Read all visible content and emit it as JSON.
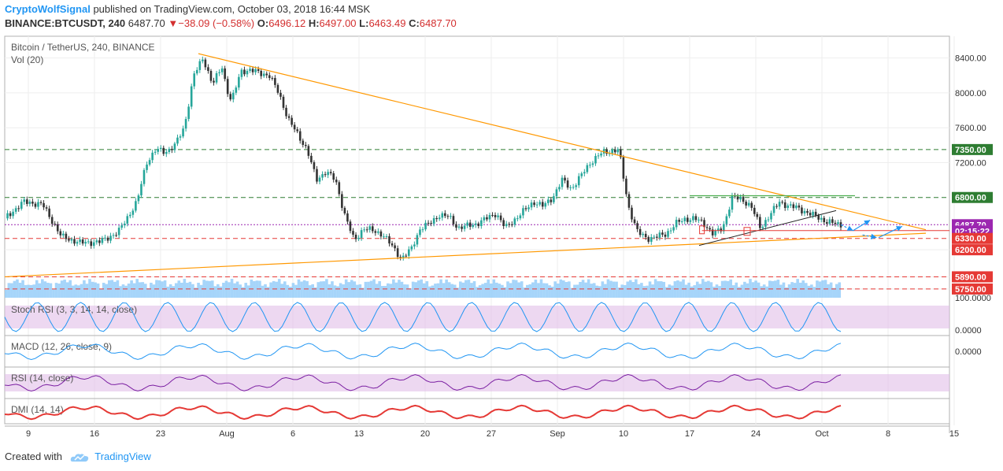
{
  "header": {
    "author": "CryptoWolfSignal",
    "published_text": "published on TradingView.com, October 03, 2018 16:44 MSK",
    "symbol": "BINANCE:BTCUSDT, 240",
    "last": "6487.70",
    "change_arrow": "▼",
    "change": "−38.09 (−0.58%)",
    "o_label": "O:",
    "o_value": "6496.12",
    "h_label": "H:",
    "h_value": "6497.00",
    "l_label": "L:",
    "l_value": "6463.49",
    "c_label": "C:",
    "c_value": "6487.70"
  },
  "footer": {
    "created_with": "Created with",
    "brand": "TradingView",
    "logo_icon": "tradingview-cloud-icon"
  },
  "colors": {
    "up": "#26a69a",
    "down": "#333333",
    "trend_orange": "#ff9800",
    "dash_green": "#2e7d32",
    "dash_red": "#e53935",
    "current_purple": "#9c27b0",
    "volume_blue": "#90caf9",
    "rsi_band": "#e1bee7",
    "accent_blue": "#2196f3"
  },
  "chart_data": {
    "type": "candlestick",
    "title": "Bitcoin / TetherUS, 240, BINANCE",
    "volume_label": "Vol (20)",
    "ylim": [
      5650,
      8650
    ],
    "yticks": [
      "8400.00",
      "8000.00",
      "7600.00",
      "7200.00",
      "6200.00",
      "5890.00",
      "5750.00"
    ],
    "ytick_values": [
      8400,
      8000,
      7600,
      7200,
      6200,
      5890,
      5750
    ],
    "xticks": [
      "9",
      "16",
      "23",
      "Aug",
      "6",
      "13",
      "20",
      "27",
      "Sep",
      "10",
      "17",
      "24",
      "Oct",
      "8",
      "15"
    ],
    "grid": true,
    "levels": [
      {
        "label": "7350.00",
        "value": 7350,
        "kind": "support-green"
      },
      {
        "label": "6800.00",
        "value": 6800,
        "kind": "support-green"
      },
      {
        "label": "6487.70",
        "value": 6487.7,
        "kind": "current"
      },
      {
        "label": "02:15:22",
        "value": 6415,
        "kind": "countdown"
      },
      {
        "label": "6330.00",
        "value": 6330,
        "kind": "support-red"
      },
      {
        "label": "6200.00",
        "value": 6200,
        "kind": "plain"
      },
      {
        "label": "5890.00",
        "value": 5890,
        "kind": "support-red"
      },
      {
        "label": "5750.00",
        "value": 5750,
        "kind": "support-red"
      }
    ],
    "path_x": [
      0,
      2,
      4,
      6,
      8,
      10,
      12,
      14,
      15,
      16,
      17,
      18,
      19,
      20,
      21,
      22,
      23,
      23.5,
      24,
      25,
      26,
      28,
      29,
      30,
      32,
      33,
      34,
      35,
      36,
      37,
      38,
      40,
      42,
      43,
      44,
      45,
      46,
      47,
      48,
      50,
      52,
      53,
      54,
      56,
      57,
      58,
      59,
      60,
      61,
      62,
      63,
      64,
      65,
      66,
      67,
      68,
      69,
      70,
      71,
      72,
      73,
      74,
      75,
      76,
      77,
      78,
      79,
      80,
      81,
      82,
      83,
      84,
      85,
      86,
      87,
      88.5
    ],
    "path_y": [
      6560,
      6750,
      6720,
      6350,
      6280,
      6290,
      6400,
      6750,
      7200,
      7350,
      7320,
      7400,
      7600,
      8200,
      8400,
      8100,
      8300,
      8050,
      7900,
      8250,
      8260,
      8200,
      8000,
      7700,
      7350,
      7000,
      7100,
      7000,
      6600,
      6300,
      6450,
      6380,
      6100,
      6200,
      6450,
      6500,
      6600,
      6580,
      6450,
      6500,
      6620,
      6450,
      6550,
      6750,
      6700,
      6800,
      7000,
      6900,
      7050,
      7200,
      7300,
      7330,
      7350,
      6700,
      6400,
      6330,
      6350,
      6380,
      6500,
      6550,
      6560,
      6500,
      6380,
      6450,
      6800,
      6780,
      6700,
      6450,
      6600,
      6750,
      6700,
      6680,
      6620,
      6580,
      6520,
      6487.7
    ],
    "trendlines": {
      "descending": {
        "from": [
          20.5,
          8450
        ],
        "to": [
          97.5,
          6430
        ]
      },
      "ascending": {
        "from": [
          0,
          5890
        ],
        "to": [
          97.5,
          6390
        ]
      },
      "rising_wedge_lower": {
        "from": [
          73.5,
          6250
        ],
        "to": [
          88,
          6650
        ]
      }
    },
    "resistance_green": {
      "from": [
        72.5,
        6820
      ],
      "to": [
        90,
        6820
      ]
    },
    "forecast_arrows": [
      {
        "from": [
          88.5,
          6487.7
        ],
        "to": [
          89.8,
          6420
        ]
      },
      {
        "from": [
          89.8,
          6420
        ],
        "to": [
          91.6,
          6540
        ]
      },
      {
        "from": [
          90.8,
          6370
        ],
        "to": [
          92.3,
          6340
        ]
      },
      {
        "from": [
          92.5,
          6340
        ],
        "to": [
          95,
          6470
        ]
      }
    ],
    "indicators": [
      {
        "name": "Stoch RSI (3, 3, 14, 14, close)",
        "ticks": [
          "100.0000",
          "0.0000"
        ]
      },
      {
        "name": "MACD (12, 26, close, 9)",
        "ticks": [
          "0.0000"
        ]
      },
      {
        "name": "RSI (14, close)",
        "ticks": []
      },
      {
        "name": "DMI (14, 14)",
        "ticks": []
      }
    ]
  }
}
